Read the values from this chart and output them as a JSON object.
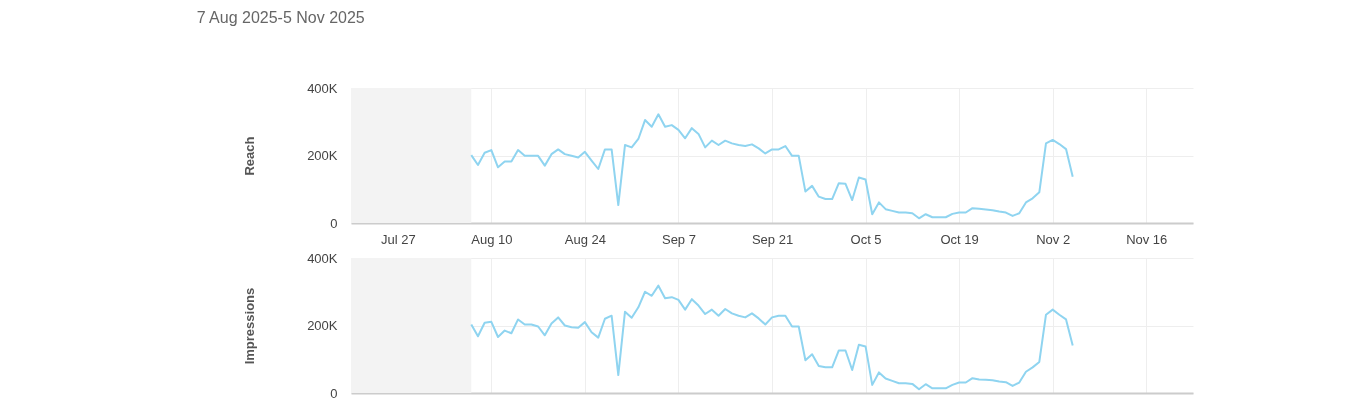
{
  "chart_data": [
    {
      "type": "line",
      "title": "7 Aug 2025-5 Nov 2025",
      "ylabel": "Reach",
      "grid": true,
      "xlim": [
        "2025-07-20",
        "2025-11-23"
      ],
      "xticks": [
        {
          "value": "2025-07-27",
          "label": "Jul 27"
        },
        {
          "value": "2025-08-10",
          "label": "Aug 10"
        },
        {
          "value": "2025-08-24",
          "label": "Aug 24"
        },
        {
          "value": "2025-09-07",
          "label": "Sep 7"
        },
        {
          "value": "2025-09-21",
          "label": "Sep 21"
        },
        {
          "value": "2025-10-05",
          "label": "Oct 5"
        },
        {
          "value": "2025-10-19",
          "label": "Oct 19"
        },
        {
          "value": "2025-11-02",
          "label": "Nov 2"
        },
        {
          "value": "2025-11-16",
          "label": "Nov 16"
        }
      ],
      "ylim": [
        0,
        400000
      ],
      "yticks": [
        {
          "value": 0,
          "label": "0"
        },
        {
          "value": 200000,
          "label": "200K"
        },
        {
          "value": 400000,
          "label": "400K"
        }
      ],
      "bands": [
        {
          "axis": "x",
          "from": "2025-07-20",
          "to": "2025-08-07",
          "color": "#f3f3f3"
        }
      ],
      "series": [
        {
          "color": "#8fd4f0",
          "x": [
            "2025-08-07",
            "2025-08-08",
            "2025-08-09",
            "2025-08-10",
            "2025-08-11",
            "2025-08-12",
            "2025-08-13",
            "2025-08-14",
            "2025-08-15",
            "2025-08-16",
            "2025-08-17",
            "2025-08-18",
            "2025-08-19",
            "2025-08-20",
            "2025-08-21",
            "2025-08-22",
            "2025-08-23",
            "2025-08-24",
            "2025-08-25",
            "2025-08-26",
            "2025-08-27",
            "2025-08-28",
            "2025-08-29",
            "2025-08-30",
            "2025-08-31",
            "2025-09-01",
            "2025-09-02",
            "2025-09-03",
            "2025-09-04",
            "2025-09-05",
            "2025-09-06",
            "2025-09-07",
            "2025-09-08",
            "2025-09-09",
            "2025-09-10",
            "2025-09-11",
            "2025-09-12",
            "2025-09-13",
            "2025-09-14",
            "2025-09-15",
            "2025-09-16",
            "2025-09-17",
            "2025-09-18",
            "2025-09-19",
            "2025-09-20",
            "2025-09-21",
            "2025-09-22",
            "2025-09-23",
            "2025-09-24",
            "2025-09-25",
            "2025-09-26",
            "2025-09-27",
            "2025-09-28",
            "2025-09-29",
            "2025-09-30",
            "2025-10-01",
            "2025-10-02",
            "2025-10-03",
            "2025-10-04",
            "2025-10-05",
            "2025-10-06",
            "2025-10-07",
            "2025-10-08",
            "2025-10-09",
            "2025-10-10",
            "2025-10-11",
            "2025-10-12",
            "2025-10-13",
            "2025-10-14",
            "2025-10-15",
            "2025-10-16",
            "2025-10-17",
            "2025-10-18",
            "2025-10-19",
            "2025-10-20",
            "2025-10-21",
            "2025-10-22",
            "2025-10-23",
            "2025-10-24",
            "2025-10-25",
            "2025-10-26",
            "2025-10-27",
            "2025-10-28",
            "2025-10-29",
            "2025-10-30",
            "2025-10-31",
            "2025-11-01",
            "2025-11-02",
            "2025-11-03",
            "2025-11-04",
            "2025-11-05"
          ],
          "values": [
            201000,
            172000,
            208000,
            216000,
            165000,
            182000,
            182000,
            216000,
            199000,
            199000,
            199000,
            170000,
            204000,
            218000,
            204000,
            199000,
            194000,
            211000,
            185000,
            160000,
            218000,
            218000,
            53000,
            231000,
            224000,
            249000,
            305000,
            285000,
            322000,
            285000,
            290000,
            276000,
            251000,
            281000,
            264000,
            224000,
            244000,
            231000,
            244000,
            236000,
            231000,
            228000,
            233000,
            221000,
            206000,
            218000,
            218000,
            228000,
            199000,
            199000,
            93000,
            110000,
            78000,
            71000,
            71000,
            118000,
            116000,
            68000,
            135000,
            129000,
            26000,
            61000,
            41000,
            36000,
            31000,
            31000,
            29000,
            14000,
            26000,
            17000,
            17000,
            17000,
            27000,
            31000,
            31000,
            44000,
            42000,
            40000,
            38000,
            34000,
            31000,
            21000,
            29000,
            61000,
            73000,
            91000,
            236000,
            246000,
            234000,
            219000,
            137000
          ]
        }
      ]
    },
    {
      "type": "line",
      "ylabel": "Impressions",
      "grid": true,
      "tick_labels": "y",
      "xlim": [
        "2025-07-20",
        "2025-11-23"
      ],
      "xticks": [
        {
          "value": "2025-07-27",
          "label": null
        },
        {
          "value": "2025-08-10",
          "label": null
        },
        {
          "value": "2025-08-24",
          "label": null
        },
        {
          "value": "2025-09-07",
          "label": null
        },
        {
          "value": "2025-09-21",
          "label": null
        },
        {
          "value": "2025-10-05",
          "label": null
        },
        {
          "value": "2025-10-19",
          "label": null
        },
        {
          "value": "2025-11-02",
          "label": null
        },
        {
          "value": "2025-11-16",
          "label": null
        }
      ],
      "ylim": [
        0,
        400000
      ],
      "yticks": [
        {
          "value": 0,
          "label": "0"
        },
        {
          "value": 200000,
          "label": "200K"
        },
        {
          "value": 400000,
          "label": "400K"
        }
      ],
      "bands": [
        {
          "axis": "x",
          "from": "2025-07-20",
          "to": "2025-08-07",
          "color": "#f3f3f3"
        }
      ],
      "series": [
        {
          "color": "#8fd4f0",
          "x": [
            "2025-08-07",
            "2025-08-08",
            "2025-08-09",
            "2025-08-10",
            "2025-08-11",
            "2025-08-12",
            "2025-08-13",
            "2025-08-14",
            "2025-08-15",
            "2025-08-16",
            "2025-08-17",
            "2025-08-18",
            "2025-08-19",
            "2025-08-20",
            "2025-08-21",
            "2025-08-22",
            "2025-08-23",
            "2025-08-24",
            "2025-08-25",
            "2025-08-26",
            "2025-08-27",
            "2025-08-28",
            "2025-08-29",
            "2025-08-30",
            "2025-08-31",
            "2025-09-01",
            "2025-09-02",
            "2025-09-03",
            "2025-09-04",
            "2025-09-05",
            "2025-09-06",
            "2025-09-07",
            "2025-09-08",
            "2025-09-09",
            "2025-09-10",
            "2025-09-11",
            "2025-09-12",
            "2025-09-13",
            "2025-09-14",
            "2025-09-15",
            "2025-09-16",
            "2025-09-17",
            "2025-09-18",
            "2025-09-19",
            "2025-09-20",
            "2025-09-21",
            "2025-09-22",
            "2025-09-23",
            "2025-09-24",
            "2025-09-25",
            "2025-09-26",
            "2025-09-27",
            "2025-09-28",
            "2025-09-29",
            "2025-09-30",
            "2025-10-01",
            "2025-10-02",
            "2025-10-03",
            "2025-10-04",
            "2025-10-05",
            "2025-10-06",
            "2025-10-07",
            "2025-10-08",
            "2025-10-09",
            "2025-10-10",
            "2025-10-11",
            "2025-10-12",
            "2025-10-13",
            "2025-10-14",
            "2025-10-15",
            "2025-10-16",
            "2025-10-17",
            "2025-10-18",
            "2025-10-19",
            "2025-10-20",
            "2025-10-21",
            "2025-10-22",
            "2025-10-23",
            "2025-10-24",
            "2025-10-25",
            "2025-10-26",
            "2025-10-27",
            "2025-10-28",
            "2025-10-29",
            "2025-10-30",
            "2025-10-31",
            "2025-11-01",
            "2025-11-02",
            "2025-11-03",
            "2025-11-04",
            "2025-11-05"
          ],
          "values": [
            203000,
            168000,
            208000,
            211000,
            166000,
            185000,
            177000,
            218000,
            203000,
            203000,
            197000,
            171000,
            206000,
            224000,
            200000,
            195000,
            193000,
            210000,
            180000,
            164000,
            220000,
            229000,
            53000,
            241000,
            223000,
            254000,
            300000,
            288000,
            318000,
            281000,
            284000,
            276000,
            247000,
            278000,
            259000,
            234000,
            247000,
            229000,
            249000,
            236000,
            229000,
            224000,
            236000,
            221000,
            203000,
            224000,
            229000,
            229000,
            197000,
            197000,
            97000,
            115000,
            80000,
            76000,
            76000,
            126000,
            126000,
            68000,
            143000,
            138000,
            24000,
            61000,
            43000,
            36000,
            29000,
            29000,
            27000,
            11000,
            26000,
            14000,
            14000,
            14000,
            24000,
            31000,
            31000,
            44000,
            40000,
            39000,
            38000,
            34000,
            32000,
            21000,
            31000,
            63000,
            76000,
            92000,
            232000,
            247000,
            232000,
            218000,
            141000
          ]
        }
      ]
    }
  ]
}
